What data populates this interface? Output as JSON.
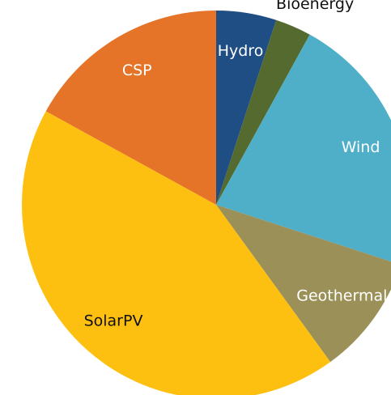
{
  "chart_data": {
    "type": "pie",
    "categories": [
      "Hydro",
      "Bioenergy",
      "Wind",
      "Geothermal",
      "SolarPV",
      "CSP"
    ],
    "values": [
      5,
      3,
      22,
      10,
      43,
      17
    ],
    "colors": [
      "#1f4e85",
      "#546a2f",
      "#4fafc9",
      "#9a9058",
      "#fdc010",
      "#e57428"
    ]
  }
}
